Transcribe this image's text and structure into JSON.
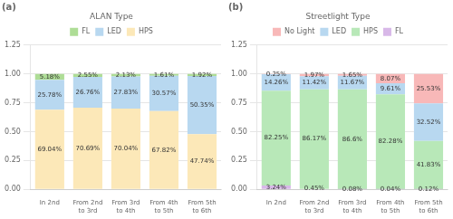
{
  "chart_data": [
    {
      "type": "bar",
      "title": "(a)",
      "legend_title": "ALAN Type",
      "categories": [
        "In 2nd",
        "From 2nd\nto 3rd",
        "From 3rd\nto 4th",
        "From 4th\nto 5th",
        "From 5th\nto 6th"
      ],
      "stacked": true,
      "data_labels": true,
      "legend": "top",
      "grid": true,
      "ylim": [
        0,
        1.25
      ],
      "yticks": [
        {
          "value": 0,
          "label": "0.00"
        },
        0.25,
        {
          "value": 0.5,
          "label": "0.50"
        },
        0.75,
        {
          "value": 1,
          "label": "1.00"
        },
        1.25
      ],
      "series": [
        {
          "name": "HPS",
          "color": "#fce8b8",
          "values": [
            0.6904,
            0.7069,
            0.7004,
            0.6782,
            0.4774
          ],
          "value_labels": [
            "69.04%",
            "70.69%",
            "70.04%",
            "67.82%",
            "47.74%"
          ]
        },
        {
          "name": "LED",
          "color": "#b8d8f0",
          "values": [
            0.2578,
            0.2676,
            0.2783,
            0.3057,
            0.5035
          ],
          "value_labels": [
            "25.78%",
            "26.76%",
            "27.83%",
            "30.57%",
            "50.35%"
          ]
        },
        {
          "name": "FL",
          "color": "#aedd96",
          "values": [
            0.0518,
            0.0255,
            0.0213,
            0.0161,
            0.0192
          ],
          "value_labels": [
            "5.18%",
            "2.55%",
            "2.13%",
            "1.61%",
            "1.92%"
          ]
        }
      ]
    },
    {
      "type": "bar",
      "title": "(b)",
      "legend_title": "Streetlight Type",
      "categories": [
        "In 2nd",
        "From 2nd\nto 3rd",
        "From 3rd\nto 4th",
        "From 4th\nto 5th",
        "From 5th\nto 6th"
      ],
      "stacked": true,
      "data_labels": true,
      "legend": "top",
      "grid": true,
      "ylim": [
        0,
        1.25
      ],
      "yticks": [
        {
          "value": 0,
          "label": "0.00"
        },
        0.25,
        {
          "value": 0.5,
          "label": "0.50"
        },
        0.75,
        {
          "value": 1,
          "label": "1.00"
        },
        1.25
      ],
      "series": [
        {
          "name": "FL",
          "color": "#d8b8e8",
          "values": [
            0.0324,
            0.0045,
            0.0008,
            0.0004,
            0.0012
          ],
          "value_labels": [
            "3.24%",
            "0.45%",
            "0.08%",
            "0.04%",
            "0.12%"
          ]
        },
        {
          "name": "HPS",
          "color": "#b8e8b8",
          "values": [
            0.8225,
            0.8617,
            0.866,
            0.8228,
            0.4183
          ],
          "value_labels": [
            "82.25%",
            "86.17%",
            "86.6%",
            "82.28%",
            "41.83%"
          ]
        },
        {
          "name": "LED",
          "color": "#b8d8f0",
          "values": [
            0.1426,
            0.1142,
            0.1167,
            0.0961,
            0.3252
          ],
          "value_labels": [
            "14.26%",
            "11.42%",
            "11.67%",
            "9.61%",
            "32.52%"
          ]
        },
        {
          "name": "No Light",
          "color": "#f8b8b8",
          "values": [
            0.0025,
            0.0197,
            0.0165,
            0.0807,
            0.2553
          ],
          "value_labels": [
            "0.25%",
            "1.97%",
            "1.65%",
            "8.07%",
            "25.53%"
          ]
        }
      ]
    }
  ]
}
